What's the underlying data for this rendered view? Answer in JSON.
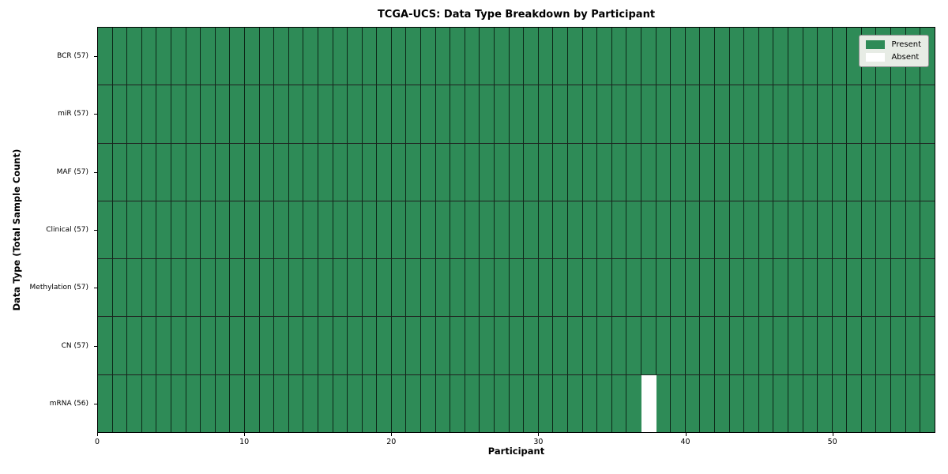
{
  "chart_data": {
    "type": "heatmap",
    "title": "TCGA-UCS: Data Type Breakdown by Participant",
    "xlabel": "Participant",
    "ylabel": "Data Type (Total Sample Count)",
    "xlim": [
      0,
      57
    ],
    "n_participants": 57,
    "x_ticks": [
      0,
      10,
      20,
      30,
      40,
      50
    ],
    "grid": false,
    "rows": [
      {
        "label": "BCR (57)",
        "data_type": "BCR",
        "total_samples": 57,
        "absent_participants": []
      },
      {
        "label": "miR (57)",
        "data_type": "miR",
        "total_samples": 57,
        "absent_participants": []
      },
      {
        "label": "MAF (57)",
        "data_type": "MAF",
        "total_samples": 57,
        "absent_participants": []
      },
      {
        "label": "Clinical (57)",
        "data_type": "Clinical",
        "total_samples": 57,
        "absent_participants": []
      },
      {
        "label": "Methylation (57)",
        "data_type": "Methylation",
        "total_samples": 57,
        "absent_participants": []
      },
      {
        "label": "CN (57)",
        "data_type": "CN",
        "total_samples": 57,
        "absent_participants": []
      },
      {
        "label": "mRNA (56)",
        "data_type": "mRNA",
        "total_samples": 56,
        "absent_participants": [
          37
        ]
      }
    ],
    "legend": {
      "position": "upper right",
      "entries": [
        {
          "label": "Present",
          "color": "#2e8b57"
        },
        {
          "label": "Absent",
          "color": "#ffffff"
        }
      ]
    },
    "colors": {
      "present": "#2e8b57",
      "absent": "#ffffff",
      "cell_edge": "#000000",
      "axis": "#000000",
      "background": "#ffffff"
    }
  }
}
